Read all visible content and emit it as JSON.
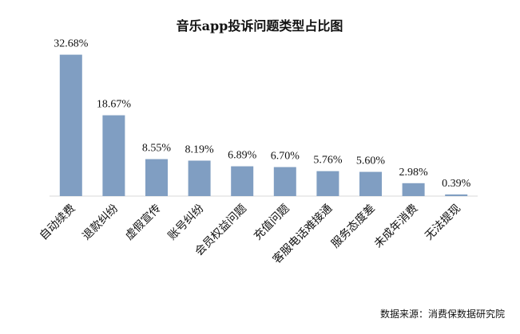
{
  "chart_data": {
    "type": "bar",
    "title": "音乐app投诉问题类型占比图",
    "categories": [
      "自动续费",
      "退款纠纷",
      "虚假宣传",
      "账号纠纷",
      "会员权益问题",
      "充值问题",
      "客服电话难接通",
      "服务态度差",
      "未成年消费",
      "无法提现"
    ],
    "values": [
      32.68,
      18.67,
      8.55,
      8.19,
      6.89,
      6.7,
      5.76,
      5.6,
      2.98,
      0.39
    ],
    "data_labels": [
      "32.68%",
      "18.67%",
      "8.55%",
      "8.19%",
      "6.89%",
      "6.70%",
      "5.76%",
      "5.60%",
      "2.98%",
      "0.39%"
    ],
    "ylim": [
      0,
      35
    ],
    "xlabel": "",
    "ylabel": "",
    "bar_color": "#809EC2",
    "source": "数据来源：消费保数据研究院"
  }
}
